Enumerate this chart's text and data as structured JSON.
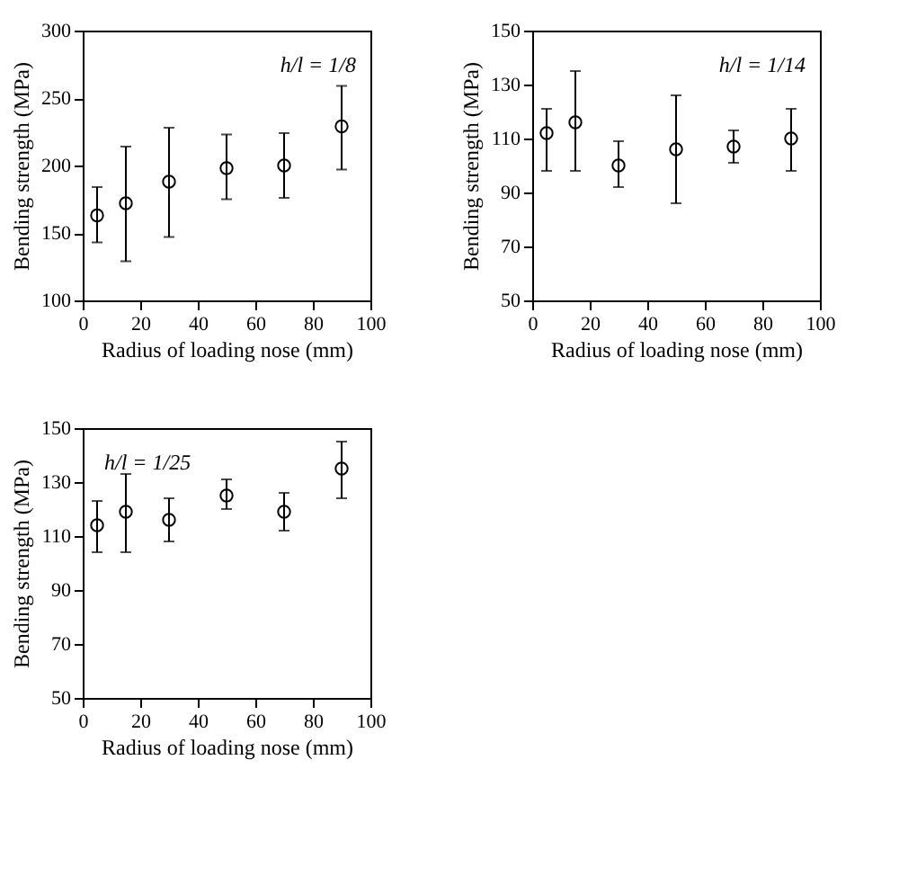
{
  "chart_data": [
    {
      "type": "scatter",
      "xlabel": "Radius of loading nose (mm)",
      "ylabel": "Bending strength (MPa)",
      "annotations": [
        "h/l = 1/8"
      ],
      "marker": "circle",
      "grid": false,
      "xlim": [
        0,
        100
      ],
      "xticks": [
        0,
        20,
        40,
        60,
        80,
        100
      ],
      "ylim": [
        100,
        300
      ],
      "yticks": [
        100,
        150,
        200,
        250,
        300
      ],
      "x": [
        5,
        15,
        30,
        50,
        70,
        90
      ],
      "values": [
        163,
        172,
        188,
        198,
        200,
        229
      ],
      "errors": [
        [
          143,
          184
        ],
        [
          129,
          214
        ],
        [
          147,
          228
        ],
        [
          175,
          223
        ],
        [
          176,
          224
        ],
        [
          197,
          259
        ]
      ],
      "color": "#000000"
    },
    {
      "type": "scatter",
      "xlabel": "Radius of loading nose (mm)",
      "ylabel": "Bending strength (MPa)",
      "annotations": [
        "h/l = 1/14"
      ],
      "marker": "circle",
      "grid": false,
      "xlim": [
        0,
        100
      ],
      "xticks": [
        0,
        20,
        40,
        60,
        80,
        100
      ],
      "ylim": [
        50,
        150
      ],
      "yticks": [
        50,
        70,
        90,
        110,
        130,
        150
      ],
      "x": [
        5,
        15,
        30,
        50,
        70,
        90
      ],
      "values": [
        112,
        116,
        100,
        106,
        107,
        110
      ],
      "errors": [
        [
          98,
          121
        ],
        [
          98,
          135
        ],
        [
          92,
          109
        ],
        [
          86,
          126
        ],
        [
          101,
          113
        ],
        [
          98,
          121
        ]
      ],
      "color": "#000000"
    },
    {
      "type": "scatter",
      "xlabel": "Radius of loading nose (mm)",
      "ylabel": "Bending strength (MPa)",
      "annotations": [
        "h/l = 1/25"
      ],
      "marker": "circle",
      "grid": false,
      "xlim": [
        0,
        100
      ],
      "xticks": [
        0,
        20,
        40,
        60,
        80,
        100
      ],
      "ylim": [
        50,
        150
      ],
      "yticks": [
        50,
        70,
        90,
        110,
        130,
        150
      ],
      "x": [
        5,
        15,
        30,
        50,
        70,
        90
      ],
      "values": [
        114,
        119,
        116,
        125,
        119,
        135
      ],
      "errors": [
        [
          104,
          123
        ],
        [
          104,
          133
        ],
        [
          108,
          124
        ],
        [
          120,
          131
        ],
        [
          112,
          126
        ],
        [
          124,
          145
        ]
      ],
      "color": "#000000"
    }
  ]
}
